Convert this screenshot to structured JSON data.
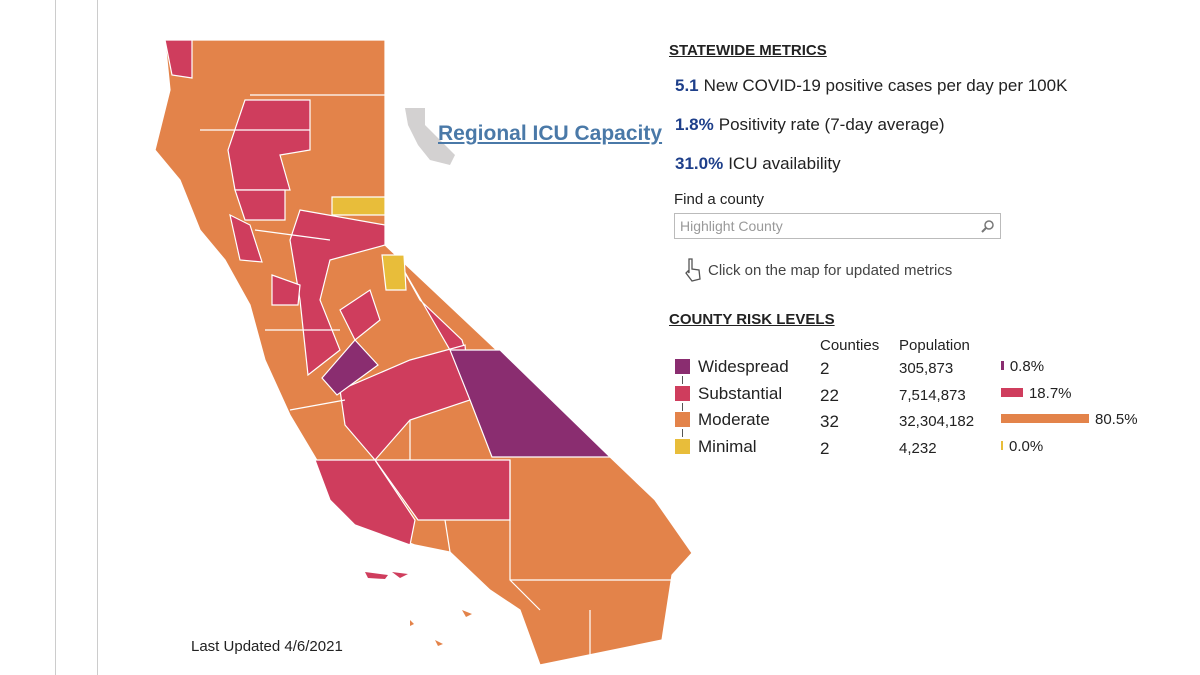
{
  "map": {
    "regional_link": "Regional ICU Capacity",
    "last_updated": "Last Updated 4/6/2021"
  },
  "statewide": {
    "title": "STATEWIDE METRICS",
    "metrics": [
      {
        "value": "5.1",
        "label": "New COVID-19 positive cases per day per 100K"
      },
      {
        "value": "1.8%",
        "label": "Positivity rate (7-day average)"
      },
      {
        "value": "31.0%",
        "label": "ICU availability"
      }
    ],
    "find_label": "Find a county",
    "search_placeholder": "Highlight County",
    "hint": "Click on the map for updated metrics"
  },
  "risk_levels": {
    "title": "COUNTY RISK LEVELS",
    "headers": [
      "Counties",
      "Population"
    ],
    "rows": [
      {
        "name": "Widespread",
        "color": "#8a2d70",
        "counties": 2,
        "population": "305,873",
        "share": 0.8,
        "share_label": "0.8%"
      },
      {
        "name": "Substantial",
        "color": "#cf3d5d",
        "counties": 22,
        "population": "7,514,873",
        "share": 18.7,
        "share_label": "18.7%"
      },
      {
        "name": "Moderate",
        "color": "#e3834a",
        "counties": 32,
        "population": "32,304,182",
        "share": 80.5,
        "share_label": "80.5%"
      },
      {
        "name": "Minimal",
        "color": "#e8bd3a",
        "counties": 2,
        "population": "4,232",
        "share": 0.0,
        "share_label": "0.0%"
      }
    ]
  }
}
